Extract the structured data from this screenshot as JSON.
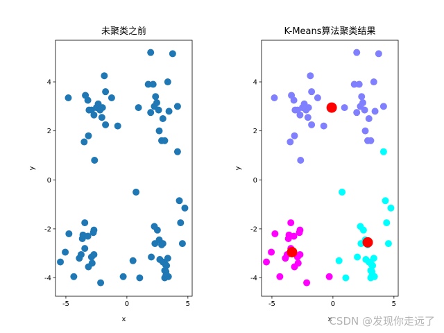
{
  "chart_data": [
    {
      "type": "scatter",
      "title": "未聚类之前",
      "xlabel": "x",
      "ylabel": "y",
      "xlim": [
        -5.85,
        5.35
      ],
      "ylim": [
        -4.75,
        5.7
      ],
      "xticks": [
        -5,
        0,
        5
      ],
      "yticks": [
        -4,
        -2,
        0,
        2,
        4
      ],
      "grid": false,
      "series": [
        {
          "color": "#1f77b4",
          "points": [
            [
              -4.8,
              3.35
            ],
            [
              -3.4,
              3.45
            ],
            [
              -3.2,
              3.25
            ],
            [
              -3.1,
              2.85
            ],
            [
              -2.9,
              2.85
            ],
            [
              -2.7,
              2.65
            ],
            [
              -2.5,
              2.95
            ],
            [
              -2.35,
              3.1
            ],
            [
              -2.2,
              2.85
            ],
            [
              -2.0,
              2.95
            ],
            [
              -1.75,
              3.6
            ],
            [
              -1.85,
              4.25
            ],
            [
              -1.25,
              3.35
            ],
            [
              -2.05,
              2.55
            ],
            [
              -1.75,
              2.25
            ],
            [
              -0.75,
              2.2
            ],
            [
              -3.15,
              1.8
            ],
            [
              -3.5,
              1.55
            ],
            [
              -2.65,
              0.8
            ],
            [
              1.95,
              5.2
            ],
            [
              3.75,
              5.15
            ],
            [
              1.75,
              3.9
            ],
            [
              2.15,
              3.9
            ],
            [
              3.35,
              4.0
            ],
            [
              2.35,
              3.4
            ],
            [
              0.95,
              2.95
            ],
            [
              2.45,
              3.15
            ],
            [
              2.25,
              3.0
            ],
            [
              1.95,
              2.75
            ],
            [
              2.6,
              2.85
            ],
            [
              3.45,
              2.8
            ],
            [
              2.95,
              2.5
            ],
            [
              4.15,
              3.0
            ],
            [
              2.65,
              2.0
            ],
            [
              2.85,
              1.6
            ],
            [
              3.1,
              1.6
            ],
            [
              4.15,
              1.15
            ],
            [
              -5.45,
              -3.35
            ],
            [
              -5.05,
              -2.95
            ],
            [
              -4.75,
              -2.2
            ],
            [
              -4.35,
              -3.95
            ],
            [
              -3.9,
              -3.2
            ],
            [
              -3.75,
              -3.05
            ],
            [
              -3.65,
              -2.4
            ],
            [
              -3.6,
              -2.25
            ],
            [
              -3.45,
              -1.75
            ],
            [
              -3.45,
              -2.8
            ],
            [
              -3.2,
              -2.3
            ],
            [
              -3.15,
              -3.55
            ],
            [
              -2.9,
              -3.15
            ],
            [
              -2.75,
              -2.15
            ],
            [
              -2.7,
              -2.05
            ],
            [
              -2.85,
              -3.4
            ],
            [
              -2.7,
              -3.05
            ],
            [
              -2.15,
              -4.2
            ],
            [
              -0.3,
              -3.95
            ],
            [
              0.75,
              -0.5
            ],
            [
              0.5,
              -3.3
            ],
            [
              1.05,
              -4.0
            ],
            [
              2.0,
              -3.15
            ],
            [
              2.3,
              -2.6
            ],
            [
              2.5,
              -2.05
            ],
            [
              2.25,
              -1.9
            ],
            [
              2.65,
              -2.45
            ],
            [
              2.95,
              -2.6
            ],
            [
              2.85,
              -2.65
            ],
            [
              2.7,
              -3.25
            ],
            [
              2.95,
              -3.35
            ],
            [
              3.15,
              -3.45
            ],
            [
              3.25,
              -3.5
            ],
            [
              3.1,
              -3.7
            ],
            [
              3.2,
              -3.75
            ],
            [
              3.1,
              -4.0
            ],
            [
              3.4,
              -3.95
            ],
            [
              3.2,
              -3.9
            ],
            [
              3.35,
              -3.2
            ],
            [
              4.3,
              -0.85
            ],
            [
              4.4,
              -1.75
            ],
            [
              4.55,
              -2.6
            ],
            [
              4.75,
              -1.15
            ]
          ]
        }
      ]
    },
    {
      "type": "scatter",
      "title": "K-Means算法聚类结果",
      "xlabel": "x",
      "ylabel": "y",
      "xlim": [
        -5.85,
        5.35
      ],
      "ylim": [
        -4.75,
        5.7
      ],
      "xticks": [
        -5,
        0,
        5
      ],
      "yticks": [
        -4,
        -2,
        0,
        2,
        4
      ],
      "grid": false,
      "series": [
        {
          "color": "#8080ff",
          "points": [
            [
              -4.8,
              3.35
            ],
            [
              -3.4,
              3.45
            ],
            [
              -3.2,
              3.25
            ],
            [
              -3.1,
              2.85
            ],
            [
              -2.9,
              2.85
            ],
            [
              -2.7,
              2.65
            ],
            [
              -2.5,
              2.95
            ],
            [
              -2.35,
              3.1
            ],
            [
              -2.2,
              2.85
            ],
            [
              -2.0,
              2.95
            ],
            [
              -1.75,
              3.6
            ],
            [
              -1.85,
              4.25
            ],
            [
              -1.25,
              3.35
            ],
            [
              -2.05,
              2.55
            ],
            [
              -1.75,
              2.25
            ],
            [
              -0.75,
              2.2
            ],
            [
              -3.15,
              1.8
            ],
            [
              -3.5,
              1.55
            ],
            [
              -2.65,
              0.8
            ],
            [
              1.95,
              5.2
            ],
            [
              3.75,
              5.15
            ],
            [
              1.75,
              3.9
            ],
            [
              2.15,
              3.9
            ],
            [
              3.35,
              4.0
            ],
            [
              2.35,
              3.4
            ],
            [
              0.95,
              2.95
            ],
            [
              2.45,
              3.15
            ],
            [
              2.25,
              3.0
            ],
            [
              1.95,
              2.75
            ],
            [
              2.6,
              2.85
            ],
            [
              3.45,
              2.8
            ],
            [
              2.95,
              2.5
            ],
            [
              4.15,
              3.0
            ],
            [
              2.65,
              2.0
            ],
            [
              2.85,
              1.6
            ],
            [
              3.1,
              1.6
            ]
          ]
        },
        {
          "color": "#00ffff",
          "points": [
            [
              4.15,
              1.15
            ],
            [
              0.75,
              -0.5
            ],
            [
              0.5,
              -3.3
            ],
            [
              1.05,
              -4.0
            ],
            [
              2.0,
              -3.15
            ],
            [
              2.3,
              -2.6
            ],
            [
              2.5,
              -2.05
            ],
            [
              2.25,
              -1.9
            ],
            [
              2.65,
              -2.45
            ],
            [
              2.95,
              -2.6
            ],
            [
              2.85,
              -2.65
            ],
            [
              2.7,
              -3.25
            ],
            [
              2.95,
              -3.35
            ],
            [
              3.15,
              -3.45
            ],
            [
              3.25,
              -3.5
            ],
            [
              3.1,
              -3.7
            ],
            [
              3.2,
              -3.75
            ],
            [
              3.1,
              -4.0
            ],
            [
              3.4,
              -3.95
            ],
            [
              3.2,
              -3.9
            ],
            [
              3.35,
              -3.2
            ],
            [
              4.3,
              -0.85
            ],
            [
              4.4,
              -1.75
            ],
            [
              4.55,
              -2.6
            ],
            [
              4.75,
              -1.15
            ]
          ]
        },
        {
          "color": "#ff00ff",
          "points": [
            [
              -5.45,
              -3.35
            ],
            [
              -5.05,
              -2.95
            ],
            [
              -4.75,
              -2.2
            ],
            [
              -4.35,
              -3.95
            ],
            [
              -3.9,
              -3.2
            ],
            [
              -3.75,
              -3.05
            ],
            [
              -3.65,
              -2.4
            ],
            [
              -3.6,
              -2.25
            ],
            [
              -3.45,
              -1.75
            ],
            [
              -3.45,
              -2.8
            ],
            [
              -3.2,
              -2.3
            ],
            [
              -3.15,
              -3.55
            ],
            [
              -2.9,
              -3.15
            ],
            [
              -2.75,
              -2.15
            ],
            [
              -2.7,
              -2.05
            ],
            [
              -2.85,
              -3.4
            ],
            [
              -2.7,
              -3.05
            ],
            [
              -2.15,
              -4.2
            ],
            [
              -0.3,
              -3.95
            ]
          ]
        },
        {
          "color": "#ff0000",
          "marker": "centroid",
          "points": [
            [
              -0.1,
              2.95
            ],
            [
              2.85,
              -2.55
            ],
            [
              -3.35,
              -2.95
            ]
          ]
        }
      ]
    }
  ],
  "watermark": "CSDN @发现你走远了"
}
